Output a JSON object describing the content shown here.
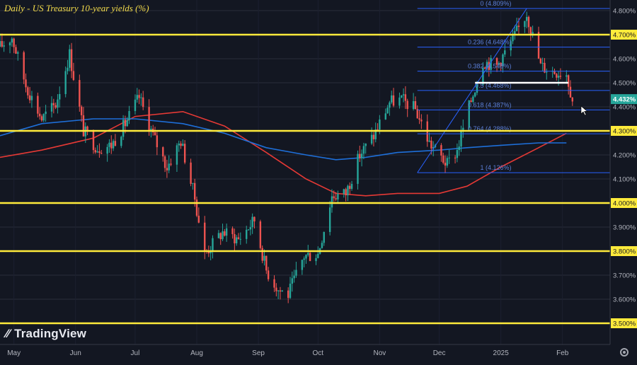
{
  "title": "Daily - US Treasury 10-year yields (%)",
  "brand": "TradingView",
  "icons": [
    "tradingview-logo-icon",
    "settings-gear-icon",
    "mouse-cursor-icon"
  ],
  "colors": {
    "background": "#131722",
    "grid": "#2a2e39",
    "horizontal_level": "#ffeb3b",
    "fib_lines": "#2962ff",
    "fib_labels": "#5b7fd8",
    "ma_red": "#e53935",
    "ma_blue": "#1e6fd9",
    "candle_up": "#26a69a",
    "candle_down": "#ef5350",
    "last_price": "#26a69a",
    "axis_text": "#b2b5be"
  },
  "chart_data": {
    "type": "candlestick",
    "title": "Daily - US Treasury 10-year yields (%)",
    "y_axis": {
      "range": [
        3.5,
        4.85
      ],
      "ticks": [
        "4.800%",
        "4.700%",
        "4.600%",
        "4.500%",
        "4.400%",
        "4.300%",
        "4.200%",
        "4.100%",
        "4.000%",
        "3.900%",
        "3.800%",
        "3.700%",
        "3.600%",
        "3.500%"
      ]
    },
    "x_axis": {
      "range": [
        "2024-04-24",
        "2025-02-10"
      ],
      "ticks": [
        {
          "label": "May",
          "date": "2024-05-01"
        },
        {
          "label": "Jun",
          "date": "2024-06-01"
        },
        {
          "label": "Jul",
          "date": "2024-07-01"
        },
        {
          "label": "Aug",
          "date": "2024-08-01"
        },
        {
          "label": "Sep",
          "date": "2024-09-01"
        },
        {
          "label": "Oct",
          "date": "2024-10-01"
        },
        {
          "label": "Nov",
          "date": "2024-11-01"
        },
        {
          "label": "Dec",
          "date": "2024-12-01"
        },
        {
          "label": "2025",
          "date": "2025-01-01"
        },
        {
          "label": "Feb",
          "date": "2025-02-01"
        }
      ]
    },
    "last_price": {
      "label": "4.432%",
      "value": 4.432
    },
    "horizontal_levels": [
      4.7,
      4.3,
      4.0,
      3.8,
      3.5
    ],
    "support_line": {
      "value": 4.5,
      "start": "2024-12-19",
      "end": "2025-02-04"
    },
    "fibonacci": {
      "start": "2024-11-20",
      "end": "2025-02-10",
      "levels": [
        {
          "label": "0 (4.809%)",
          "value": 4.809
        },
        {
          "label": "0.236 (4.648%)",
          "value": 4.648
        },
        {
          "label": "0.382 (4.548%)",
          "value": 4.548
        },
        {
          "label": "0.5 (4.468%)",
          "value": 4.468
        },
        {
          "label": "0.618 (4.387%)",
          "value": 4.387
        },
        {
          "label": "0.764 (4.288%)",
          "value": 4.288
        },
        {
          "label": "1 (4.126%)",
          "value": 4.126
        }
      ],
      "trend_line": {
        "from": {
          "date": "2024-11-20",
          "value": 4.126
        },
        "to": {
          "date": "2025-01-14",
          "value": 4.809
        }
      }
    },
    "moving_averages": [
      {
        "color": "#e53935",
        "dates": [
          "2024-04-24",
          "2024-05-15",
          "2024-06-10",
          "2024-07-01",
          "2024-07-25",
          "2024-08-15",
          "2024-09-05",
          "2024-09-25",
          "2024-10-10",
          "2024-10-25",
          "2024-11-10",
          "2024-12-01",
          "2024-12-15",
          "2025-01-01",
          "2025-01-20",
          "2025-02-03"
        ],
        "values": [
          4.19,
          4.22,
          4.27,
          4.36,
          4.38,
          4.32,
          4.21,
          4.1,
          4.04,
          4.03,
          4.04,
          4.04,
          4.07,
          4.15,
          4.23,
          4.29
        ]
      },
      {
        "color": "#1e6fd9",
        "dates": [
          "2024-04-24",
          "2024-05-15",
          "2024-06-10",
          "2024-07-01",
          "2024-07-25",
          "2024-08-15",
          "2024-09-05",
          "2024-09-25",
          "2024-10-10",
          "2024-10-25",
          "2024-11-10",
          "2024-12-01",
          "2024-12-15",
          "2025-01-01",
          "2025-01-20",
          "2025-02-03"
        ],
        "values": [
          4.28,
          4.33,
          4.35,
          4.35,
          4.33,
          4.29,
          4.23,
          4.2,
          4.18,
          4.19,
          4.21,
          4.22,
          4.23,
          4.24,
          4.25,
          4.25
        ]
      }
    ],
    "close_path": {
      "dates": [
        "2024-04-24",
        "2024-04-30",
        "2024-05-07",
        "2024-05-15",
        "2024-05-22",
        "2024-05-29",
        "2024-06-05",
        "2024-06-12",
        "2024-06-19",
        "2024-06-26",
        "2024-07-03",
        "2024-07-10",
        "2024-07-17",
        "2024-07-24",
        "2024-07-31",
        "2024-08-05",
        "2024-08-14",
        "2024-08-22",
        "2024-08-30",
        "2024-09-05",
        "2024-09-11",
        "2024-09-16",
        "2024-09-24",
        "2024-10-01",
        "2024-10-08",
        "2024-10-15",
        "2024-10-22",
        "2024-10-29",
        "2024-11-06",
        "2024-11-12",
        "2024-11-19",
        "2024-11-26",
        "2024-12-05",
        "2024-12-10",
        "2024-12-16",
        "2024-12-23",
        "2024-12-30",
        "2025-01-07",
        "2025-01-14",
        "2025-01-21",
        "2025-01-27",
        "2025-02-03",
        "2025-02-06"
      ],
      "values": [
        4.65,
        4.69,
        4.49,
        4.35,
        4.41,
        4.62,
        4.3,
        4.23,
        4.24,
        4.33,
        4.44,
        4.28,
        4.15,
        4.26,
        4.02,
        3.79,
        3.88,
        3.85,
        3.93,
        3.72,
        3.64,
        3.62,
        3.78,
        3.79,
        4.03,
        4.04,
        4.2,
        4.28,
        4.42,
        4.43,
        4.39,
        4.25,
        4.16,
        4.22,
        4.4,
        4.59,
        4.57,
        4.68,
        4.79,
        4.57,
        4.55,
        4.54,
        4.43
      ]
    }
  }
}
